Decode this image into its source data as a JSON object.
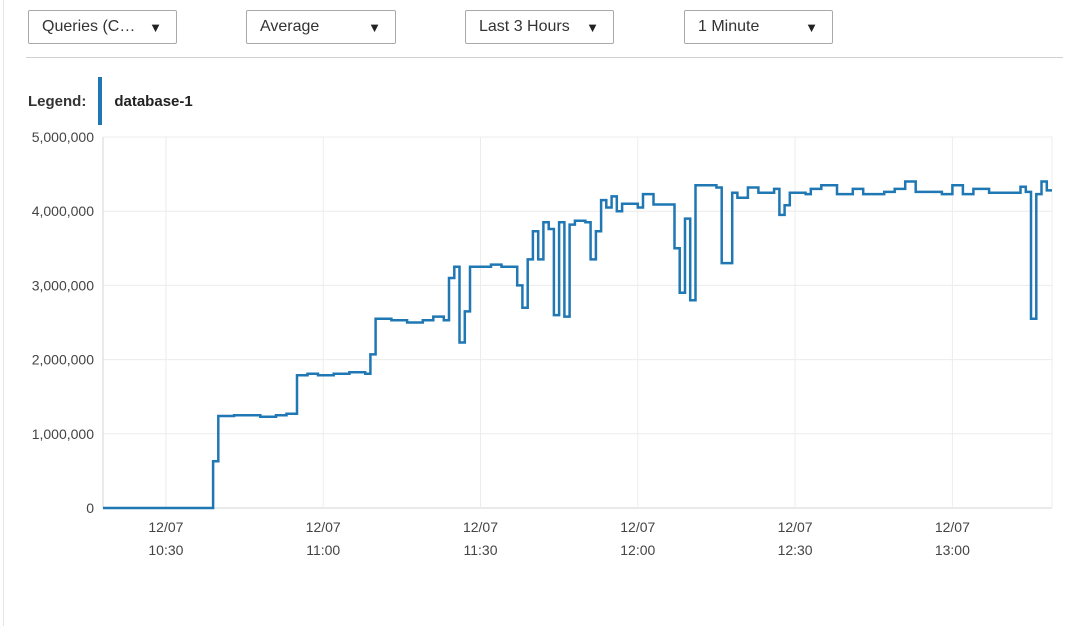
{
  "toolbar": {
    "metric": "Queries (C…",
    "statistic": "Average",
    "time_range": "Last 3 Hours",
    "period": "1 Minute"
  },
  "legend": {
    "label": "Legend:",
    "items": [
      "database-1"
    ]
  },
  "colors": {
    "series": "#1f77b4",
    "grid": "#ececec",
    "axis": "#d4d4d4"
  },
  "icons": {
    "dropdown": "caret-down-icon"
  },
  "chart_data": {
    "type": "line",
    "step": true,
    "title": "",
    "xlabel": "",
    "ylabel": "",
    "ylim": [
      0,
      5000000
    ],
    "xlim": [
      "10:18",
      "13:19"
    ],
    "y_ticks": [
      0,
      1000000,
      2000000,
      3000000,
      4000000,
      5000000
    ],
    "y_tick_labels": [
      "0",
      "1,000,000",
      "2,000,000",
      "3,000,000",
      "4,000,000",
      "5,000,000"
    ],
    "x_ticks": [
      {
        "time": "10:30",
        "date": "12/07",
        "label": "10:30"
      },
      {
        "time": "11:00",
        "date": "12/07",
        "label": "11:00"
      },
      {
        "time": "11:30",
        "date": "12/07",
        "label": "11:30"
      },
      {
        "time": "12:00",
        "date": "12/07",
        "label": "12:00"
      },
      {
        "time": "12:30",
        "date": "12/07",
        "label": "12:30"
      },
      {
        "time": "13:00",
        "date": "12/07",
        "label": "13:00"
      }
    ],
    "grid": true,
    "series": [
      {
        "name": "database-1",
        "points": [
          [
            "10:18",
            0
          ],
          [
            "10:39",
            630000
          ],
          [
            "10:40",
            1240000
          ],
          [
            "10:43",
            1250000
          ],
          [
            "10:48",
            1230000
          ],
          [
            "10:51",
            1250000
          ],
          [
            "10:53",
            1270000
          ],
          [
            "10:55",
            1790000
          ],
          [
            "10:57",
            1810000
          ],
          [
            "10:59",
            1790000
          ],
          [
            "11:02",
            1810000
          ],
          [
            "11:05",
            1830000
          ],
          [
            "11:08",
            1810000
          ],
          [
            "11:09",
            2070000
          ],
          [
            "11:10",
            2550000
          ],
          [
            "11:13",
            2530000
          ],
          [
            "11:16",
            2500000
          ],
          [
            "11:19",
            2530000
          ],
          [
            "11:21",
            2580000
          ],
          [
            "11:23",
            2530000
          ],
          [
            "11:24",
            3100000
          ],
          [
            "11:25",
            3250000
          ],
          [
            "11:26",
            2230000
          ],
          [
            "11:27",
            2650000
          ],
          [
            "11:28",
            3250000
          ],
          [
            "11:30",
            3250000
          ],
          [
            "11:32",
            3280000
          ],
          [
            "11:34",
            3250000
          ],
          [
            "11:37",
            3000000
          ],
          [
            "11:38",
            2700000
          ],
          [
            "11:39",
            3350000
          ],
          [
            "11:40",
            3730000
          ],
          [
            "11:41",
            3350000
          ],
          [
            "11:42",
            3850000
          ],
          [
            "11:43",
            3760000
          ],
          [
            "11:44",
            2600000
          ],
          [
            "11:45",
            3850000
          ],
          [
            "11:46",
            2580000
          ],
          [
            "11:47",
            3820000
          ],
          [
            "11:48",
            3870000
          ],
          [
            "11:50",
            3850000
          ],
          [
            "11:51",
            3350000
          ],
          [
            "11:52",
            3730000
          ],
          [
            "11:53",
            4150000
          ],
          [
            "11:54",
            4050000
          ],
          [
            "11:55",
            4200000
          ],
          [
            "11:56",
            4000000
          ],
          [
            "11:57",
            4100000
          ],
          [
            "12:00",
            4050000
          ],
          [
            "12:01",
            4230000
          ],
          [
            "12:03",
            4090000
          ],
          [
            "12:07",
            3500000
          ],
          [
            "12:08",
            2900000
          ],
          [
            "12:09",
            3900000
          ],
          [
            "12:10",
            2800000
          ],
          [
            "12:11",
            4350000
          ],
          [
            "12:15",
            4320000
          ],
          [
            "12:16",
            3300000
          ],
          [
            "12:18",
            4250000
          ],
          [
            "12:19",
            4180000
          ],
          [
            "12:21",
            4320000
          ],
          [
            "12:23",
            4250000
          ],
          [
            "12:26",
            4300000
          ],
          [
            "12:27",
            3950000
          ],
          [
            "12:28",
            4080000
          ],
          [
            "12:29",
            4250000
          ],
          [
            "12:32",
            4230000
          ],
          [
            "12:33",
            4300000
          ],
          [
            "12:35",
            4350000
          ],
          [
            "12:38",
            4230000
          ],
          [
            "12:41",
            4300000
          ],
          [
            "12:43",
            4230000
          ],
          [
            "12:47",
            4260000
          ],
          [
            "12:49",
            4300000
          ],
          [
            "12:51",
            4400000
          ],
          [
            "12:53",
            4260000
          ],
          [
            "12:58",
            4230000
          ],
          [
            "13:00",
            4350000
          ],
          [
            "13:02",
            4230000
          ],
          [
            "13:04",
            4300000
          ],
          [
            "13:07",
            4250000
          ],
          [
            "13:12",
            4250000
          ],
          [
            "13:13",
            4330000
          ],
          [
            "13:14",
            4260000
          ],
          [
            "13:15",
            2550000
          ],
          [
            "13:16",
            4230000
          ],
          [
            "13:17",
            4400000
          ],
          [
            "13:18",
            4280000
          ],
          [
            "13:19",
            4280000
          ]
        ]
      }
    ]
  }
}
